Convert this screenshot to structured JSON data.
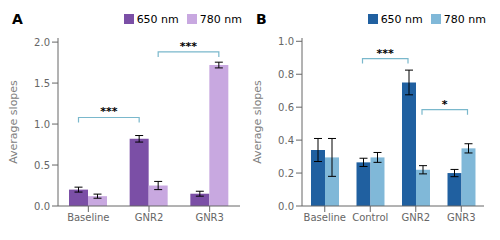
{
  "chart_data": [
    {
      "type": "bar",
      "title": "A",
      "categories": [
        "Baseline",
        "GNR2",
        "GNR3"
      ],
      "series": [
        {
          "name": "650 nm",
          "color": "#7b4fa6",
          "values": [
            0.2,
            0.82,
            0.15
          ],
          "errors": [
            0.03,
            0.04,
            0.03
          ]
        },
        {
          "name": "780 nm",
          "color": "#c8a8e0",
          "values": [
            0.12,
            0.25,
            1.72
          ],
          "errors": [
            0.025,
            0.05,
            0.035
          ]
        }
      ],
      "ylabel": "Average slopes",
      "ylim": [
        0,
        2.05
      ],
      "yticks": [
        {
          "value": 0,
          "label": "0.0"
        },
        {
          "value": 0.5,
          "label": "0.5"
        },
        {
          "value": 1.0,
          "label": "1.0"
        },
        {
          "value": 1.5,
          "label": "1.5"
        },
        {
          "value": 2.0,
          "label": "2.0"
        }
      ],
      "grid": false,
      "legend": "upper right",
      "annotations": [
        {
          "text": "***",
          "from": {
            "category": "Baseline",
            "series": "650 nm"
          },
          "to": {
            "category": "GNR2",
            "series": "650 nm"
          },
          "y": 1.08,
          "color": "#7ab8cc"
        },
        {
          "text": "***",
          "from": {
            "category": "GNR2",
            "series": "780 nm"
          },
          "to": {
            "category": "GNR3",
            "series": "780 nm"
          },
          "y": 1.88,
          "color": "#7ab8cc"
        }
      ]
    },
    {
      "type": "bar",
      "title": "B",
      "categories": [
        "Baseline",
        "Control",
        "GNR2",
        "GNR3"
      ],
      "series": [
        {
          "name": "650 nm",
          "color": "#2060a0",
          "values": [
            0.34,
            0.265,
            0.75,
            0.2
          ],
          "errors": [
            0.07,
            0.025,
            0.075,
            0.022
          ]
        },
        {
          "name": "780 nm",
          "color": "#80b8d8",
          "values": [
            0.295,
            0.295,
            0.22,
            0.35
          ],
          "errors": [
            0.115,
            0.03,
            0.025,
            0.028
          ]
        }
      ],
      "ylabel": "Average slopes",
      "ylim": [
        0,
        1.02
      ],
      "yticks": [
        {
          "value": 0,
          "label": "0.0"
        },
        {
          "value": 0.2,
          "label": "0.2"
        },
        {
          "value": 0.4,
          "label": "0.4"
        },
        {
          "value": 0.6,
          "label": "0.6"
        },
        {
          "value": 0.8,
          "label": "0.8"
        },
        {
          "value": 1.0,
          "label": "1.0"
        }
      ],
      "grid": false,
      "legend": "upper right",
      "annotations": [
        {
          "text": "***",
          "from": {
            "category": "Control",
            "series": "650 nm"
          },
          "to": {
            "category": "GNR2",
            "series": "650 nm"
          },
          "y": 0.895,
          "color": "#7ab8cc"
        },
        {
          "text": "*",
          "from": {
            "category": "GNR2",
            "series": "780 nm"
          },
          "to": {
            "category": "GNR3",
            "series": "780 nm"
          },
          "y": 0.585,
          "color": "#7ab8cc"
        }
      ]
    }
  ]
}
